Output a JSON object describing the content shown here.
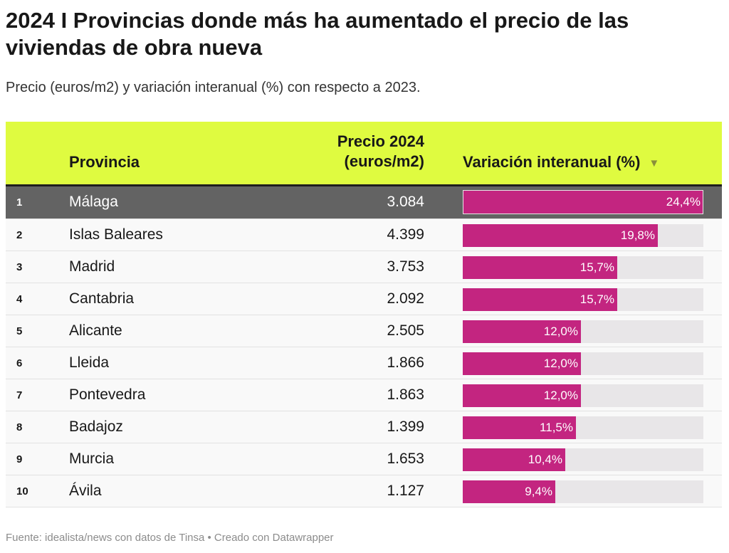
{
  "title": "2024 I Provincias donde más ha aumentado el precio de las viviendas de obra nueva",
  "subtitle": "Precio (euros/m2) y variación interanual (%) con respecto a 2023.",
  "table": {
    "headers": {
      "provincia": "Provincia",
      "precio_line1": "Precio 2024",
      "precio_line2": "(euros/m2)",
      "variacion": "Variación interanual (%)"
    },
    "sort_icon": "sort-descending-icon"
  },
  "chart_data": {
    "type": "table",
    "columns": [
      "",
      "Provincia",
      "Precio 2024 (euros/m2)",
      "Variación interanual (%)"
    ],
    "rows": [
      {
        "rank": "1",
        "provincia": "Málaga",
        "precio": "3.084",
        "variacion": 24.4,
        "variacion_label": "24,4%"
      },
      {
        "rank": "2",
        "provincia": "Islas Baleares",
        "precio": "4.399",
        "variacion": 19.8,
        "variacion_label": "19,8%"
      },
      {
        "rank": "3",
        "provincia": "Madrid",
        "precio": "3.753",
        "variacion": 15.7,
        "variacion_label": "15,7%"
      },
      {
        "rank": "4",
        "provincia": "Cantabria",
        "precio": "2.092",
        "variacion": 15.7,
        "variacion_label": "15,7%"
      },
      {
        "rank": "5",
        "provincia": "Alicante",
        "precio": "2.505",
        "variacion": 12.0,
        "variacion_label": "12,0%"
      },
      {
        "rank": "6",
        "provincia": "Lleida",
        "precio": "1.866",
        "variacion": 12.0,
        "variacion_label": "12,0%"
      },
      {
        "rank": "7",
        "provincia": "Pontevedra",
        "precio": "1.863",
        "variacion": 12.0,
        "variacion_label": "12,0%"
      },
      {
        "rank": "8",
        "provincia": "Badajoz",
        "precio": "1.399",
        "variacion": 11.5,
        "variacion_label": "11,5%"
      },
      {
        "rank": "9",
        "provincia": "Murcia",
        "precio": "1.653",
        "variacion": 10.4,
        "variacion_label": "10,4%"
      },
      {
        "rank": "10",
        "provincia": "Ávila",
        "precio": "1.127",
        "variacion": 9.4,
        "variacion_label": "9,4%"
      }
    ],
    "bar_max": 24.4,
    "colors": {
      "header_bg": "#dffb40",
      "bar": "#c32580",
      "track": "#e8e6e8",
      "highlight_row": "#636363"
    }
  },
  "source": "Fuente: idealista/news con datos de Tinsa • Creado con Datawrapper"
}
